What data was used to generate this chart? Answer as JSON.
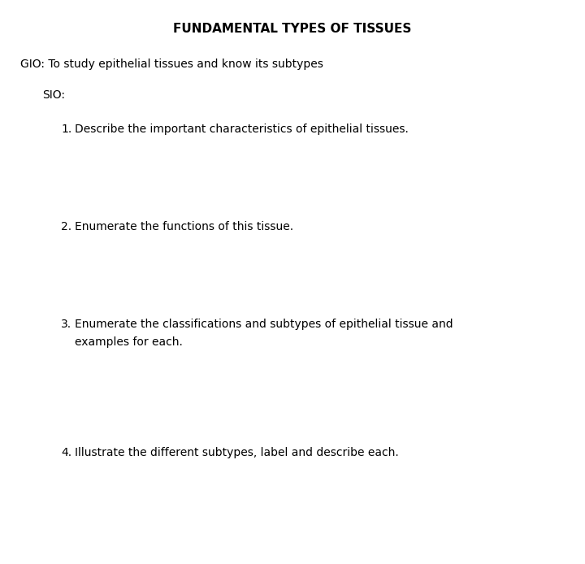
{
  "title": "FUNDAMENTAL TYPES OF TISSUES",
  "gio_text": "GIO: To study epithelial tissues and know its subtypes",
  "sio_label": "SIO:",
  "items": [
    {
      "number": "1.",
      "lines": [
        "Describe the important characteristics of epithelial tissues."
      ]
    },
    {
      "number": "2.",
      "lines": [
        "Enumerate the functions of this tissue."
      ]
    },
    {
      "number": "3.",
      "lines": [
        "Enumerate the classifications and subtypes of epithelial tissue and",
        "examples for each."
      ]
    },
    {
      "number": "4.",
      "lines": [
        "Illustrate the different subtypes, label and describe each."
      ]
    }
  ],
  "background_color": "#ffffff",
  "text_color": "#000000",
  "title_fontsize": 11,
  "body_fontsize": 10,
  "fig_width": 7.2,
  "fig_height": 6.94,
  "dpi": 100
}
